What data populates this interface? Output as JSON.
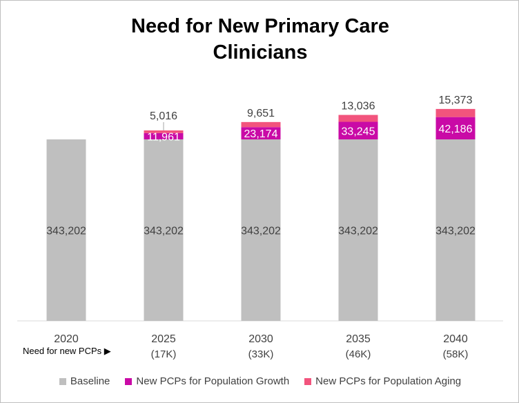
{
  "chart_data": {
    "type": "bar",
    "stacked": true,
    "title": [
      "Need for New Primary Care",
      "Clinicians"
    ],
    "categories": [
      "2020",
      "2025",
      "2030",
      "2035",
      "2040"
    ],
    "sublabels": [
      "",
      "(17K)",
      "(33K)",
      "(46K)",
      "(58K)"
    ],
    "need_label": "Need for new PCPs ▶",
    "series": [
      {
        "name": "Baseline",
        "color": "#bfbfbf",
        "values": [
          343202,
          343202,
          343202,
          343202,
          343202
        ],
        "labels": [
          "343,202",
          "343,202",
          "343,202",
          "343,202",
          "343,202"
        ]
      },
      {
        "name": "New PCPs for Population Growth",
        "color": "#c90aa6",
        "values": [
          0,
          11961,
          23174,
          33245,
          42186
        ],
        "labels": [
          "",
          "11,961",
          "23,174",
          "33,245",
          "42,186"
        ]
      },
      {
        "name": "New PCPs for Population Aging",
        "color": "#f2547d",
        "values": [
          0,
          5016,
          9651,
          13036,
          15373
        ],
        "labels": [
          "",
          "5,016",
          "9,651",
          "13,036",
          "15,373"
        ]
      }
    ],
    "ylim": [
      0,
      420000
    ],
    "grid": false,
    "legend_position": "bottom"
  }
}
